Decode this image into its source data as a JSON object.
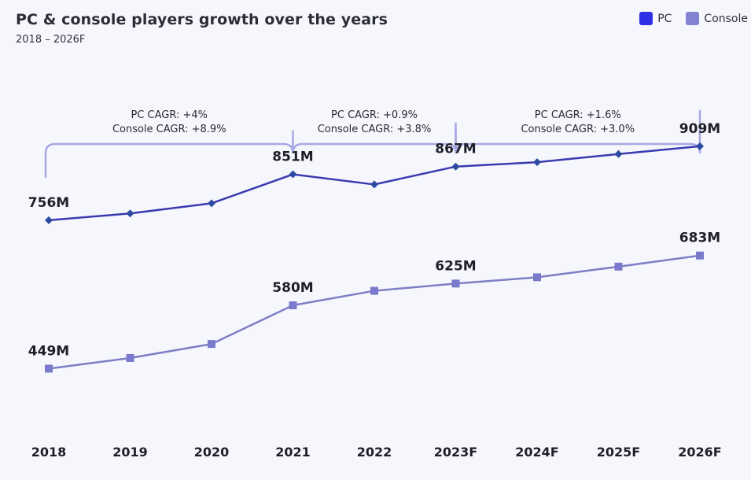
{
  "chart_data": {
    "type": "line",
    "title": "PC & console players growth over the years",
    "subtitle": "2018 – 2026F",
    "categories": [
      "2018",
      "2019",
      "2020",
      "2021",
      "2022",
      "2023F",
      "2024F",
      "2025F",
      "2026F"
    ],
    "series": [
      {
        "name": "PC",
        "color": "#2f2fe6",
        "line_color": "#3a3ab0",
        "marker": "diamond",
        "marker_color": "#2c4aa0",
        "values": [
          756,
          770,
          791,
          851,
          830,
          867,
          876,
          893,
          909
        ],
        "labels": [
          {
            "index": 0,
            "text": "756M"
          },
          {
            "index": 3,
            "text": "851M"
          },
          {
            "index": 5,
            "text": "867M"
          },
          {
            "index": 8,
            "text": "909M"
          }
        ]
      },
      {
        "name": "Console",
        "color": "#8282d2",
        "line_color": "#7e7ec6",
        "marker": "square",
        "marker_color": "#7a7acc",
        "values": [
          449,
          471,
          500,
          580,
          610,
          625,
          638,
          660,
          683
        ],
        "labels": [
          {
            "index": 0,
            "text": "449M"
          },
          {
            "index": 3,
            "text": "580M"
          },
          {
            "index": 5,
            "text": "625M"
          },
          {
            "index": 8,
            "text": "683M"
          }
        ]
      }
    ],
    "annotations": [
      {
        "from": "2018",
        "to": "2021",
        "lines": [
          "PC CAGR: +4%",
          "Console CAGR: +8.9%"
        ]
      },
      {
        "from": "2021",
        "to": "2023F",
        "lines": [
          "PC CAGR: +0.9%",
          "Console CAGR: +3.8%"
        ]
      },
      {
        "from": "2023F",
        "to": "2026F",
        "lines": [
          "PC CAGR: +1.6%",
          "Console CAGR: +3.0%"
        ]
      }
    ],
    "ylim": [
      300,
      1000
    ],
    "grid": false,
    "legend": "top-right",
    "xlabel": "",
    "ylabel": "",
    "bracket_color": "#a7a8e3"
  }
}
